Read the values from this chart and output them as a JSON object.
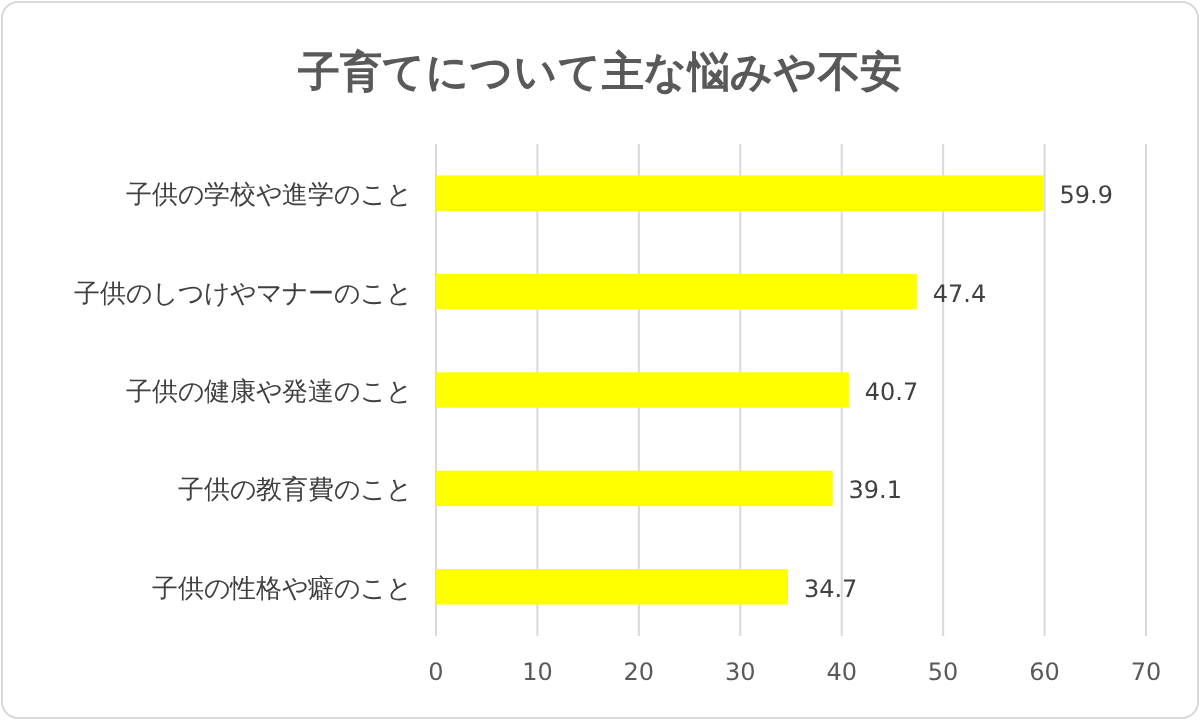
{
  "chart_data": {
    "type": "bar",
    "orientation": "horizontal",
    "title": "子育てについて主な悩みや不安",
    "categories": [
      "子供の学校や進学のこと",
      "子供のしつけやマナーのこと",
      "子供の健康や発達のこと",
      "子供の教育費のこと",
      "子供の性格や癖のこと"
    ],
    "values": [
      59.9,
      47.4,
      40.7,
      39.1,
      34.7
    ],
    "color": "#ffff00",
    "xlim": [
      0,
      70
    ],
    "xticks": [
      0,
      10,
      20,
      30,
      40,
      50,
      60,
      70
    ],
    "grid": "x",
    "data_labels": true
  }
}
